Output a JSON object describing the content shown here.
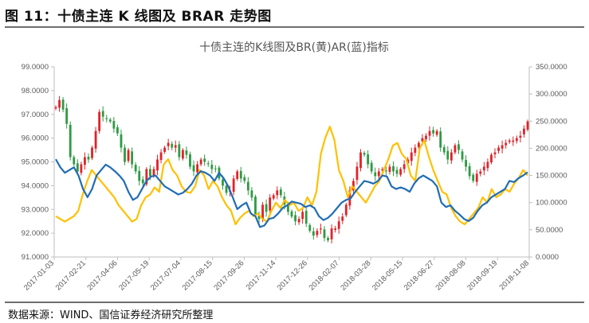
{
  "figure": {
    "heading": "图 11：十债主连 K 线图及 BRAR 走势图",
    "source": "数据来源：WIND、国信证券经济研究所整理"
  },
  "colors": {
    "candle_up": "#e0232a",
    "candle_down": "#2f9a44",
    "br_line": "#ffc000",
    "ar_line": "#1f6db5",
    "axis": "#bfbfbf"
  },
  "chart_data": {
    "type": "line",
    "title": "十债主连的K线图及BR(黄)AR(蓝)指标",
    "grid": false,
    "x_ticks": [
      "2017-01-03",
      "2017-02-21",
      "2017-04-06",
      "2017-05-19",
      "2017-07-04",
      "2017-08-15",
      "2017-09-26",
      "2017-11-14",
      "2017-12-26",
      "2018-02-07",
      "2018-03-28",
      "2018-05-15",
      "2018-06-27",
      "2018-08-08",
      "2018-09-19",
      "2018-11-08"
    ],
    "y_left": {
      "min": 91,
      "max": 99,
      "ticks": [
        "91.0000",
        "92.0000",
        "93.0000",
        "94.0000",
        "95.0000",
        "96.0000",
        "97.0000",
        "98.0000",
        "99.0000"
      ]
    },
    "y_right": {
      "min": 0,
      "max": 350,
      "ticks": [
        "0.0000",
        "50.0000",
        "100.0000",
        "150.0000",
        "200.0000",
        "250.0000",
        "300.0000",
        "350.0000"
      ]
    },
    "price_close": [
      97.3,
      97.6,
      97.2,
      96.6,
      95.2,
      94.9,
      94.6,
      94.9,
      95.2,
      95.1,
      95.6,
      96.3,
      97.1,
      96.9,
      96.8,
      96.7,
      96.4,
      96.2,
      95.6,
      95.0,
      95.5,
      94.9,
      94.6,
      94.2,
      94.1,
      94.7,
      94.4,
      94.7,
      95.1,
      95.4,
      95.6,
      95.8,
      95.6,
      95.7,
      95.2,
      95.5,
      95.3,
      94.8,
      94.6,
      94.9,
      95.1,
      95.0,
      94.9,
      94.7,
      94.7,
      94.3,
      94.0,
      93.7,
      93.8,
      94.3,
      94.6,
      94.3,
      94.2,
      93.8,
      93.5,
      92.8,
      92.6,
      93.2,
      92.9,
      93.5,
      93.6,
      93.8,
      93.6,
      93.2,
      92.9,
      92.7,
      92.5,
      92.6,
      92.9,
      92.4,
      92.1,
      91.9,
      92.1,
      92.2,
      91.8,
      91.7,
      92.2,
      92.2,
      92.5,
      92.7,
      93.2,
      93.8,
      94.2,
      94.8,
      95.4,
      95.3,
      94.9,
      94.6,
      94.4,
      94.6,
      94.7,
      94.6,
      94.8,
      94.6,
      94.5,
      94.7,
      94.9,
      95.1,
      95.4,
      95.6,
      95.8,
      96.0,
      96.1,
      96.3,
      96.2,
      96.3,
      95.6,
      95.4,
      95.1,
      95.4,
      95.7,
      95.5,
      95.1,
      94.8,
      94.4,
      94.2,
      94.5,
      94.6,
      94.8,
      95.0,
      95.3,
      95.4,
      95.6,
      95.7,
      95.8,
      95.9,
      95.9,
      96.0,
      96.1,
      96.4,
      96.7
    ],
    "ar": [
      180,
      165,
      155,
      160,
      165,
      150,
      125,
      110,
      125,
      150,
      160,
      170,
      165,
      158,
      150,
      140,
      120,
      105,
      110,
      125,
      140,
      148,
      150,
      140,
      130,
      125,
      120,
      115,
      118,
      125,
      135,
      150,
      158,
      155,
      150,
      140,
      155,
      145,
      130,
      110,
      88,
      95,
      100,
      80,
      75,
      55,
      58,
      70,
      72,
      80,
      90,
      95,
      102,
      100,
      98,
      92,
      95,
      90,
      75,
      68,
      72,
      80,
      90,
      100,
      105,
      108,
      120,
      130,
      140,
      138,
      135,
      140,
      150,
      148,
      130,
      125,
      128,
      125,
      120,
      135,
      145,
      150,
      145,
      140,
      130,
      100,
      92,
      95,
      85,
      78,
      70,
      66,
      72,
      85,
      95,
      100,
      110,
      115,
      120,
      125,
      140,
      138,
      145,
      150,
      156
    ],
    "br": [
      75,
      70,
      65,
      70,
      75,
      85,
      115,
      140,
      160,
      150,
      140,
      130,
      120,
      110,
      95,
      85,
      75,
      65,
      70,
      95,
      110,
      115,
      128,
      120,
      170,
      180,
      160,
      150,
      130,
      120,
      118,
      130,
      160,
      150,
      125,
      140,
      130,
      110,
      95,
      85,
      60,
      72,
      80,
      85,
      75,
      80,
      70,
      65,
      85,
      100,
      90,
      105,
      95,
      100,
      85,
      90,
      110,
      95,
      120,
      190,
      220,
      240,
      215,
      160,
      140,
      110,
      130,
      120,
      110,
      100,
      115,
      130,
      140,
      160,
      180,
      205,
      210,
      190,
      180,
      150,
      140,
      200,
      215,
      185,
      160,
      140,
      120,
      115,
      90,
      75,
      65,
      60,
      70,
      80,
      90,
      110,
      100,
      125,
      110,
      115,
      125,
      120,
      135,
      145,
      160,
      150
    ]
  }
}
